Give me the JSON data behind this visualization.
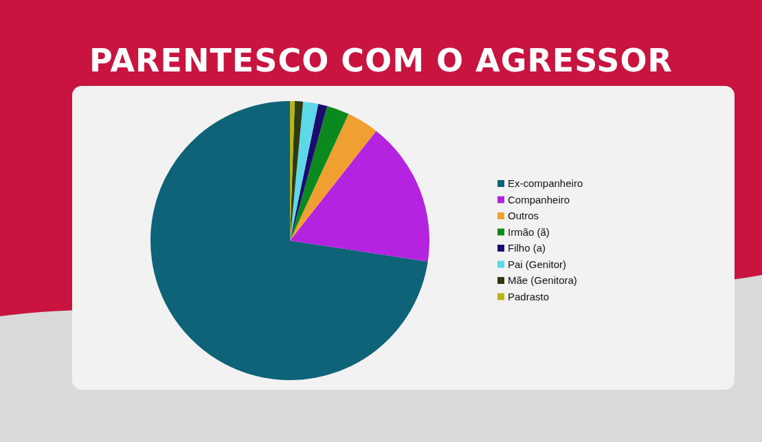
{
  "chart_data": {
    "type": "pie",
    "title": "PARENTESCO COM O AGRESSOR",
    "categories": [
      "Ex-companheiro",
      "Companheiro",
      "Outros",
      "Irmão (ã)",
      "Filho (a)",
      "Pai (Genitor)",
      "Mãe (Genitora)",
      "Padrasto"
    ],
    "values": [
      72.6,
      16.8,
      3.7,
      2.6,
      1.05,
      1.75,
      0.95,
      0.55
    ],
    "colors": [
      "#0e6378",
      "#b423e0",
      "#f0a030",
      "#0a8a1e",
      "#1c0a6e",
      "#5cd8e8",
      "#2e3a10",
      "#b8b418"
    ],
    "legend": "right"
  }
}
